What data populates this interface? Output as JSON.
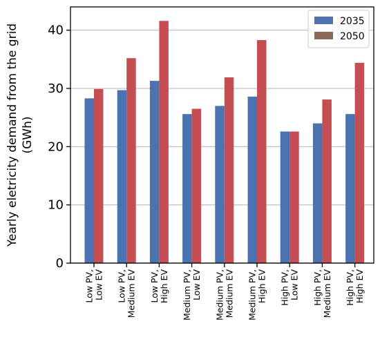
{
  "chart_data": {
    "type": "bar",
    "title": "",
    "xlabel": "",
    "ylabel": [
      "Yearly eletricity demand from the grid",
      "(GWh)"
    ],
    "ylim": [
      0,
      44
    ],
    "yticks": [
      0,
      10,
      20,
      30,
      40
    ],
    "grid": "horizontal",
    "legend_position": "top-right",
    "categories": [
      [
        "Low PV,",
        "Low EV"
      ],
      [
        "Low PV,",
        "Medium EV"
      ],
      [
        "Low PV,",
        "High EV"
      ],
      [
        "Medium PV,",
        "Low EV"
      ],
      [
        "Medium PV,",
        "Medium EV"
      ],
      [
        "Medium PV,",
        "High EV"
      ],
      [
        "High PV,",
        "Low EV"
      ],
      [
        "High PV,",
        "Medium EV"
      ],
      [
        "High PV,",
        "High EV"
      ]
    ],
    "series": [
      {
        "name": "2035",
        "legend_color": "#4C72B0",
        "color_top": "#4C72B0",
        "color_bottom": "#4C72B0",
        "values": [
          28.3,
          29.7,
          31.3,
          25.6,
          27.0,
          28.6,
          22.6,
          24.0,
          25.6
        ]
      },
      {
        "name": "2050",
        "legend_color": "#8C6A58",
        "color_top": "#C44E52",
        "color_bottom": "#C44E52",
        "values": [
          29.9,
          35.2,
          41.6,
          26.5,
          31.9,
          38.3,
          22.6,
          28.1,
          34.4
        ]
      }
    ]
  }
}
